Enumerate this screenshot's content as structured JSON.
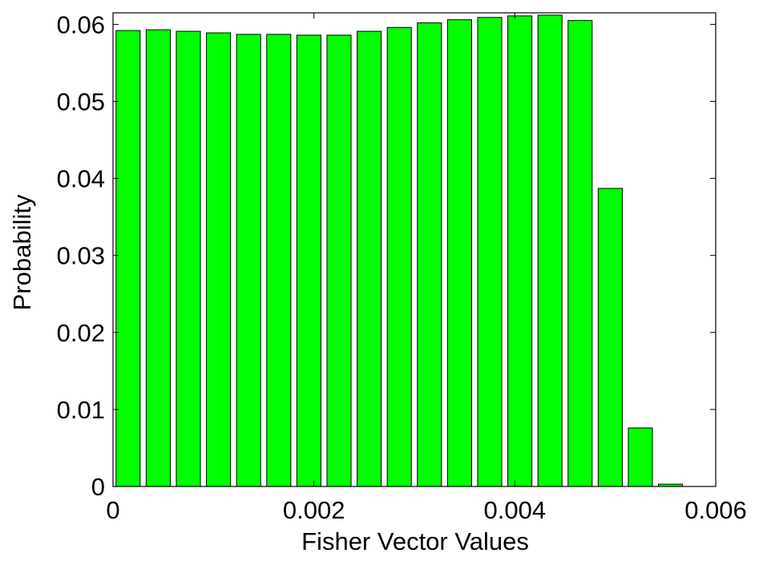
{
  "chart_data": {
    "type": "bar",
    "xlabel": "Fisher Vector Values",
    "ylabel": "Probability",
    "xlim": [
      0,
      0.006
    ],
    "ylim": [
      0,
      0.0615
    ],
    "bar_color": "#00ff00",
    "edge_color": "#000000",
    "grid": false,
    "bin_width": 0.0003,
    "x": [
      0.00015,
      0.00045,
      0.00075,
      0.00105,
      0.00135,
      0.00165,
      0.00195,
      0.00225,
      0.00255,
      0.00285,
      0.00315,
      0.00345,
      0.00375,
      0.00405,
      0.00435,
      0.00465,
      0.00495,
      0.00525,
      0.00555,
      0.00585
    ],
    "values": [
      0.0592,
      0.0593,
      0.0591,
      0.0589,
      0.0587,
      0.0587,
      0.0586,
      0.0586,
      0.0591,
      0.0596,
      0.0602,
      0.0606,
      0.0609,
      0.0611,
      0.0612,
      0.0605,
      0.0387,
      0.0076,
      0.0003,
      0.0
    ],
    "x_ticks": [
      {
        "value": 0,
        "label": "0"
      },
      {
        "value": 0.002,
        "label": "0.002"
      },
      {
        "value": 0.004,
        "label": "0.004"
      },
      {
        "value": 0.006,
        "label": "0.006"
      }
    ],
    "y_ticks": [
      {
        "value": 0,
        "label": "0"
      },
      {
        "value": 0.01,
        "label": "0.01"
      },
      {
        "value": 0.02,
        "label": "0.02"
      },
      {
        "value": 0.03,
        "label": "0.03"
      },
      {
        "value": 0.04,
        "label": "0.04"
      },
      {
        "value": 0.05,
        "label": "0.05"
      },
      {
        "value": 0.06,
        "label": "0.06"
      }
    ]
  }
}
